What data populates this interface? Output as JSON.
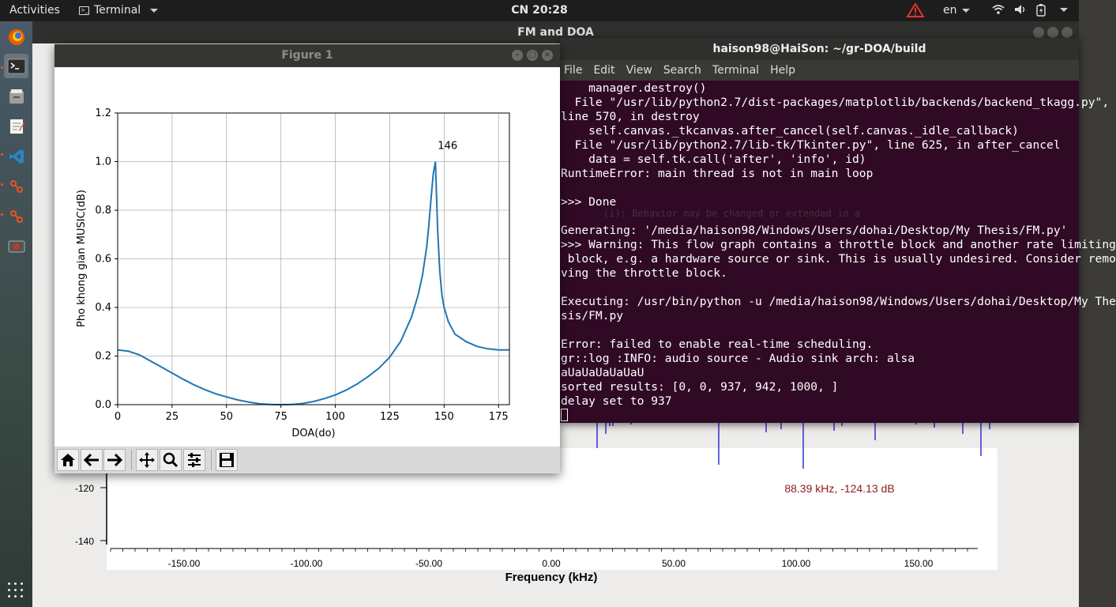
{
  "topbar": {
    "activities": "Activities",
    "app_menu": "Terminal",
    "clock": "CN 20:28",
    "language": "en"
  },
  "dock": {
    "items": [
      "firefox-icon",
      "terminal-icon",
      "files-icon",
      "text-editor-icon",
      "vscode-icon",
      "gnuradio-icon",
      "gnuradio-icon",
      "screenshot-icon"
    ],
    "accent": "#e95420"
  },
  "fm_window": {
    "title": "FM and DOA",
    "y_ticks": [
      "-120",
      "-140"
    ],
    "x_ticks": [
      "-150.00",
      "-100.00",
      "-50.00",
      "0.00",
      "50.00",
      "100.00",
      "150.00"
    ],
    "xlabel": "Frequency (kHz)",
    "marker_readout": "88.39 kHz, -124.13 dB",
    "trace_color": "#0000cc",
    "readout_color": "#8b1a1a"
  },
  "terminal": {
    "title": "haison98@HaiSon: ~/gr-DOA/build",
    "menu": [
      "File",
      "Edit",
      "View",
      "Search",
      "Terminal",
      "Help"
    ],
    "lines": [
      "    manager.destroy()",
      "  File \"/usr/lib/python2.7/dist-packages/matplotlib/backends/backend_tkagg.py\",",
      "line 570, in destroy",
      "    self.canvas._tkcanvas.after_cancel(self.canvas._idle_callback)",
      "  File \"/usr/lib/python2.7/lib-tk/Tkinter.py\", line 625, in after_cancel",
      "    data = self.tk.call('after', 'info', id)",
      "RuntimeError: main thread is not in main loop",
      "",
      ">>> Done",
      "",
      "Generating: '/media/haison98/Windows/Users/dohai/Desktop/My Thesis/FM.py'",
      ">>> Warning: This flow graph contains a throttle block and another rate limiting",
      " block, e.g. a hardware source or sink. This is usually undesired. Consider remo",
      "ving the throttle block.",
      "",
      "Executing: /usr/bin/python -u /media/haison98/Windows/Users/dohai/Desktop/My The",
      "sis/FM.py",
      "",
      "Error: failed to enable real-time scheduling.",
      "gr::log :INFO: audio source - Audio sink arch: alsa",
      "aUaUaUaUaUaU",
      "sorted results: [0, 0, 937, 942, 1000, ]",
      "delay set to 937"
    ],
    "ghost_text": "(i): Behavior may be changed or extended in a",
    "bg_color": "#300a24"
  },
  "figure": {
    "title": "Figure 1",
    "toolbar": [
      "home-icon",
      "back-arrow-icon",
      "forward-arrow-icon",
      "pan-icon",
      "zoom-icon",
      "configure-subplots-icon",
      "save-icon"
    ]
  },
  "chart_data": {
    "type": "line",
    "title": "",
    "xlabel": "DOA(do)",
    "ylabel": "Pho khong gian MUSIC(dB)",
    "xlim": [
      0,
      180
    ],
    "ylim": [
      0,
      1.2
    ],
    "x_ticks": [
      0,
      25,
      50,
      75,
      100,
      125,
      150,
      175
    ],
    "y_ticks": [
      "0.0",
      "0.2",
      "0.4",
      "0.6",
      "0.8",
      "1.0",
      "1.2"
    ],
    "grid": true,
    "line_color": "#1f77b4",
    "annotation": {
      "text": "146",
      "x": 146,
      "y": 1.0
    },
    "series": [
      {
        "x": [
          0,
          5,
          10,
          15,
          20,
          25,
          30,
          35,
          40,
          45,
          50,
          55,
          60,
          65,
          70,
          75,
          80,
          85,
          90,
          95,
          100,
          105,
          110,
          115,
          120,
          125,
          130,
          135,
          138,
          140,
          142,
          143,
          144,
          145,
          146,
          147,
          148,
          149,
          150,
          152,
          155,
          160,
          165,
          170,
          175,
          180
        ],
        "y": [
          0.225,
          0.22,
          0.205,
          0.18,
          0.155,
          0.13,
          0.105,
          0.082,
          0.062,
          0.045,
          0.032,
          0.02,
          0.011,
          0.004,
          0.001,
          0.0,
          0.001,
          0.005,
          0.013,
          0.025,
          0.04,
          0.06,
          0.085,
          0.115,
          0.15,
          0.195,
          0.26,
          0.36,
          0.45,
          0.53,
          0.65,
          0.74,
          0.85,
          0.95,
          1.0,
          0.72,
          0.55,
          0.45,
          0.4,
          0.34,
          0.29,
          0.26,
          0.24,
          0.23,
          0.225,
          0.225
        ]
      }
    ]
  }
}
